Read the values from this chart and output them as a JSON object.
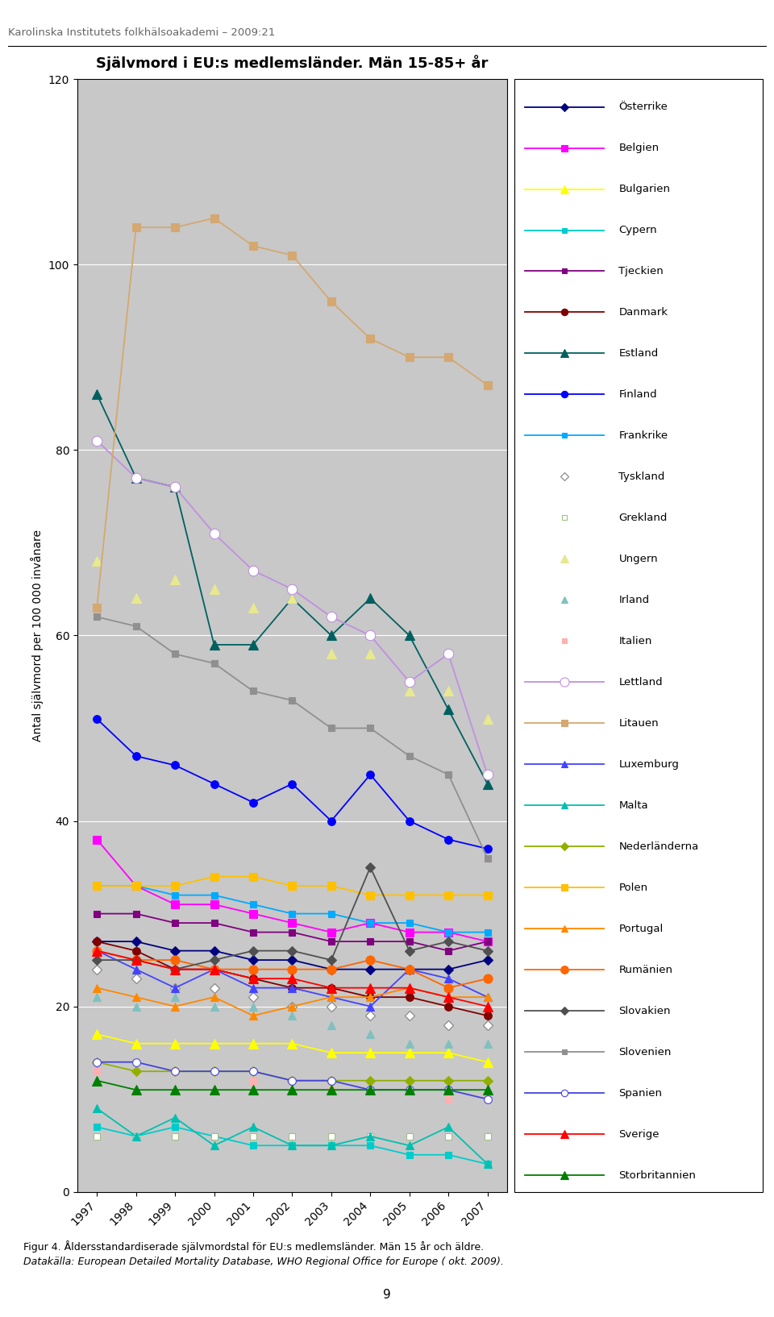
{
  "title": "Självmord i EU:s medlemsländer. Män 15-85+ år",
  "ylabel": "Antal självmord per 100 000 invånare",
  "header": "Karolinska Institutets folkhälsoakademi – 2009:21",
  "footer1": "Figur 4. Åldersstandardiserade självmordstal för EU:s medlemsländer. Män 15 år och äldre.",
  "footer2": "Datakälla: European Detailed Mortality Database, WHO Regional Office for Europe ( okt. 2009).",
  "page_number": "9",
  "years": [
    1997,
    1998,
    1999,
    2000,
    2001,
    2002,
    2003,
    2004,
    2005,
    2006,
    2007
  ],
  "series": [
    {
      "name": "Österrike",
      "color": "#000080",
      "marker": "D",
      "markersize": 6,
      "markerfacecolor": "#000080",
      "linestyle": "-",
      "data": [
        27,
        27,
        26,
        26,
        25,
        25,
        24,
        24,
        24,
        24,
        25
      ]
    },
    {
      "name": "Belgien",
      "color": "#ff00ff",
      "marker": "s",
      "markersize": 7,
      "markerfacecolor": "#ff00ff",
      "linestyle": "-",
      "data": [
        38,
        33,
        31,
        31,
        30,
        29,
        28,
        29,
        28,
        28,
        27
      ]
    },
    {
      "name": "Bulgarien",
      "color": "#ffff00",
      "marker": "^",
      "markersize": 8,
      "markerfacecolor": "#ffff00",
      "linestyle": "-",
      "data": [
        17,
        16,
        16,
        16,
        16,
        16,
        15,
        15,
        15,
        15,
        14
      ]
    },
    {
      "name": "Cypern",
      "color": "#00cccc",
      "marker": "s",
      "markersize": 6,
      "markerfacecolor": "#00cccc",
      "linestyle": "-",
      "data": [
        7,
        6,
        7,
        6,
        5,
        5,
        5,
        5,
        4,
        4,
        3
      ]
    },
    {
      "name": "Tjeckien",
      "color": "#800080",
      "marker": "s",
      "markersize": 6,
      "markerfacecolor": "#800080",
      "linestyle": "-",
      "data": [
        30,
        30,
        29,
        29,
        28,
        28,
        27,
        27,
        27,
        26,
        27
      ]
    },
    {
      "name": "Danmark",
      "color": "#800000",
      "marker": "o",
      "markersize": 7,
      "markerfacecolor": "#800000",
      "linestyle": "-",
      "data": [
        27,
        26,
        24,
        24,
        23,
        22,
        22,
        21,
        21,
        20,
        19
      ]
    },
    {
      "name": "Estland",
      "color": "#006060",
      "marker": "^",
      "markersize": 8,
      "markerfacecolor": "#006060",
      "linestyle": "-",
      "data": [
        86,
        77,
        76,
        59,
        59,
        64,
        60,
        64,
        60,
        52,
        44
      ]
    },
    {
      "name": "Finland",
      "color": "#0000ff",
      "marker": "o",
      "markersize": 7,
      "markerfacecolor": "#0000ff",
      "linestyle": "-",
      "data": [
        51,
        47,
        46,
        44,
        42,
        44,
        40,
        45,
        40,
        38,
        37
      ]
    },
    {
      "name": "Frankrike",
      "color": "#00aaff",
      "marker": "s",
      "markersize": 6,
      "markerfacecolor": "#00aaff",
      "linestyle": "-",
      "data": [
        33,
        33,
        32,
        32,
        31,
        30,
        30,
        29,
        29,
        28,
        28
      ]
    },
    {
      "name": "Tyskland",
      "color": "#808080",
      "marker": "D",
      "markersize": 6,
      "markerfacecolor": "white",
      "linestyle": "",
      "data": [
        24,
        23,
        22,
        22,
        21,
        20,
        20,
        19,
        19,
        18,
        18
      ]
    },
    {
      "name": "Grekland",
      "color": "#a0c080",
      "marker": "s",
      "markersize": 6,
      "markerfacecolor": "white",
      "linestyle": "",
      "data": [
        6,
        6,
        6,
        6,
        6,
        6,
        6,
        6,
        6,
        6,
        6
      ]
    },
    {
      "name": "Ungern",
      "color": "#e8e890",
      "marker": "^",
      "markersize": 8,
      "markerfacecolor": "#e8e890",
      "linestyle": "",
      "data": [
        68,
        64,
        66,
        65,
        63,
        64,
        58,
        58,
        54,
        54,
        51
      ]
    },
    {
      "name": "Irland",
      "color": "#80c0c0",
      "marker": "^",
      "markersize": 7,
      "markerfacecolor": "#80c0c0",
      "linestyle": "",
      "data": [
        21,
        20,
        21,
        20,
        20,
        19,
        18,
        17,
        16,
        16,
        16
      ]
    },
    {
      "name": "Italien",
      "color": "#ffb0b0",
      "marker": "s",
      "markersize": 6,
      "markerfacecolor": "#ffb0b0",
      "linestyle": "",
      "data": [
        13,
        13,
        13,
        13,
        12,
        12,
        11,
        11,
        11,
        10,
        10
      ]
    },
    {
      "name": "Lettland",
      "color": "#c090e0",
      "marker": "o",
      "markersize": 9,
      "markerfacecolor": "white",
      "linestyle": "-",
      "data": [
        81,
        77,
        76,
        71,
        67,
        65,
        62,
        60,
        55,
        58,
        45
      ]
    },
    {
      "name": "Litauen",
      "color": "#d4a870",
      "marker": "s",
      "markersize": 7,
      "markerfacecolor": "#d4a870",
      "linestyle": "-",
      "data": [
        63,
        104,
        104,
        105,
        102,
        101,
        96,
        92,
        90,
        90,
        87
      ]
    },
    {
      "name": "Luxemburg",
      "color": "#4444ff",
      "marker": "^",
      "markersize": 7,
      "markerfacecolor": "#4444ff",
      "linestyle": "-",
      "data": [
        26,
        24,
        22,
        24,
        22,
        22,
        21,
        20,
        24,
        23,
        21
      ]
    },
    {
      "name": "Malta",
      "color": "#00c0b0",
      "marker": "^",
      "markersize": 7,
      "markerfacecolor": "#00c0b0",
      "linestyle": "-",
      "data": [
        9,
        6,
        8,
        5,
        7,
        5,
        5,
        6,
        5,
        7,
        3
      ]
    },
    {
      "name": "Nederländerna",
      "color": "#90b000",
      "marker": "D",
      "markersize": 6,
      "markerfacecolor": "#90b000",
      "linestyle": "-",
      "data": [
        14,
        13,
        13,
        13,
        13,
        12,
        12,
        12,
        12,
        12,
        12
      ]
    },
    {
      "name": "Polen",
      "color": "#ffc000",
      "marker": "s",
      "markersize": 7,
      "markerfacecolor": "#ffc000",
      "linestyle": "-",
      "data": [
        33,
        33,
        33,
        34,
        34,
        33,
        33,
        32,
        32,
        32,
        32
      ]
    },
    {
      "name": "Portugal",
      "color": "#ff8800",
      "marker": "^",
      "markersize": 7,
      "markerfacecolor": "#ff8800",
      "linestyle": "-",
      "data": [
        22,
        21,
        20,
        21,
        19,
        20,
        21,
        21,
        22,
        21,
        21
      ]
    },
    {
      "name": "Rumänien",
      "color": "#ff6600",
      "marker": "o",
      "markersize": 8,
      "markerfacecolor": "#ff6600",
      "linestyle": "-",
      "data": [
        26,
        25,
        25,
        24,
        24,
        24,
        24,
        25,
        24,
        22,
        23
      ]
    },
    {
      "name": "Slovakien",
      "color": "#505050",
      "marker": "D",
      "markersize": 6,
      "markerfacecolor": "#505050",
      "linestyle": "-",
      "data": [
        25,
        25,
        24,
        25,
        26,
        26,
        25,
        35,
        26,
        27,
        26
      ]
    },
    {
      "name": "Slovenien",
      "color": "#909090",
      "marker": "s",
      "markersize": 6,
      "markerfacecolor": "#909090",
      "linestyle": "-",
      "data": [
        62,
        61,
        58,
        57,
        54,
        53,
        50,
        50,
        47,
        45,
        36
      ]
    },
    {
      "name": "Spanien",
      "color": "#4444dd",
      "marker": "o",
      "markersize": 7,
      "markerfacecolor": "white",
      "linestyle": "-",
      "data": [
        14,
        14,
        13,
        13,
        13,
        12,
        12,
        11,
        11,
        11,
        10
      ]
    },
    {
      "name": "Sverige",
      "color": "#ff0000",
      "marker": "^",
      "markersize": 8,
      "markerfacecolor": "#ff0000",
      "linestyle": "-",
      "data": [
        26,
        25,
        24,
        24,
        23,
        23,
        22,
        22,
        22,
        21,
        20
      ]
    },
    {
      "name": "Storbritannien",
      "color": "#008000",
      "marker": "^",
      "markersize": 8,
      "markerfacecolor": "#008000",
      "linestyle": "-",
      "data": [
        12,
        11,
        11,
        11,
        11,
        11,
        11,
        11,
        11,
        11,
        11
      ]
    }
  ],
  "ylim": [
    0,
    120
  ],
  "yticks": [
    0,
    20,
    40,
    60,
    80,
    100,
    120
  ],
  "background_color": "#c8c8c8",
  "grid_color": "#aaaaaa"
}
